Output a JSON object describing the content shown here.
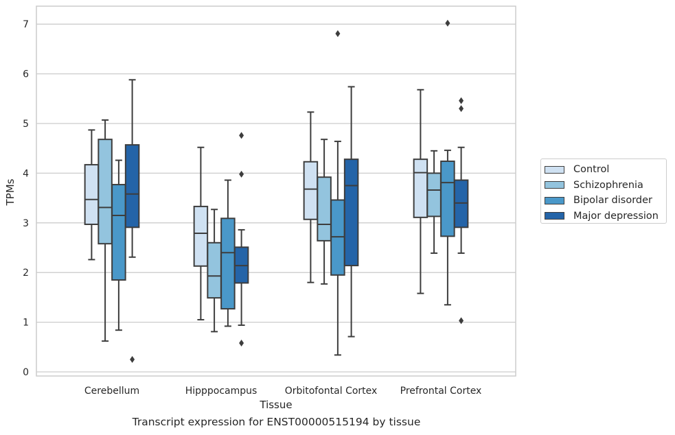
{
  "caption": "Transcript expression for ENST00000515194 by tissue",
  "chart_data": {
    "type": "boxplot",
    "title": "",
    "xlabel": "Tissue",
    "ylabel": "TPMs",
    "ylim": [
      -0.08,
      7.38
    ],
    "yticks": [
      0,
      1,
      2,
      3,
      4,
      5,
      6,
      7
    ],
    "grid": true,
    "legend_position": "right",
    "categories": [
      "Cerebellum",
      "Hipppocampus",
      "Orbitofontal Cortex",
      "Prefrontal Cortex"
    ],
    "series": [
      {
        "name": "Control",
        "color": "#cfe1f2",
        "boxes": [
          {
            "whislo": 2.26,
            "q1": 2.97,
            "med": 3.47,
            "q3": 4.17,
            "whishi": 4.87,
            "fliers": []
          },
          {
            "whislo": 1.05,
            "q1": 2.13,
            "med": 2.79,
            "q3": 3.33,
            "whishi": 4.52,
            "fliers": []
          },
          {
            "whislo": 1.8,
            "q1": 3.07,
            "med": 3.68,
            "q3": 4.23,
            "whishi": 5.23,
            "fliers": []
          },
          {
            "whislo": 1.58,
            "q1": 3.11,
            "med": 4.01,
            "q3": 4.28,
            "whishi": 5.68,
            "fliers": []
          }
        ]
      },
      {
        "name": "Schizophrenia",
        "color": "#93c4de",
        "boxes": [
          {
            "whislo": 0.62,
            "q1": 2.58,
            "med": 3.31,
            "q3": 4.68,
            "whishi": 5.07,
            "fliers": []
          },
          {
            "whislo": 0.81,
            "q1": 1.49,
            "med": 1.93,
            "q3": 2.6,
            "whishi": 3.27,
            "fliers": []
          },
          {
            "whislo": 1.77,
            "q1": 2.64,
            "med": 2.97,
            "q3": 3.92,
            "whishi": 4.68,
            "fliers": []
          },
          {
            "whislo": 2.39,
            "q1": 3.13,
            "med": 3.66,
            "q3": 4.0,
            "whishi": 4.45,
            "fliers": []
          }
        ]
      },
      {
        "name": "Bipolar disorder",
        "color": "#4a98c9",
        "boxes": [
          {
            "whislo": 0.84,
            "q1": 1.85,
            "med": 3.15,
            "q3": 3.77,
            "whishi": 4.26,
            "fliers": []
          },
          {
            "whislo": 0.92,
            "q1": 1.27,
            "med": 2.4,
            "q3": 3.09,
            "whishi": 3.86,
            "fliers": []
          },
          {
            "whislo": 0.34,
            "q1": 1.95,
            "med": 2.72,
            "q3": 3.46,
            "whishi": 4.64,
            "fliers": [
              6.81
            ]
          },
          {
            "whislo": 1.35,
            "q1": 2.73,
            "med": 3.81,
            "q3": 4.24,
            "whishi": 4.46,
            "fliers": [
              7.02
            ]
          }
        ]
      },
      {
        "name": "Major depression",
        "color": "#2464a8",
        "boxes": [
          {
            "whislo": 2.31,
            "q1": 2.91,
            "med": 3.58,
            "q3": 4.57,
            "whishi": 5.88,
            "fliers": [
              0.25
            ]
          },
          {
            "whislo": 0.94,
            "q1": 1.79,
            "med": 2.14,
            "q3": 2.51,
            "whishi": 2.86,
            "fliers": [
              3.98,
              4.76,
              0.58
            ]
          },
          {
            "whislo": 0.71,
            "q1": 2.14,
            "med": 3.75,
            "q3": 4.28,
            "whishi": 5.74,
            "fliers": []
          },
          {
            "whislo": 2.39,
            "q1": 2.91,
            "med": 3.4,
            "q3": 3.86,
            "whishi": 4.52,
            "fliers": [
              5.46,
              5.3,
              1.03
            ]
          }
        ]
      }
    ]
  }
}
